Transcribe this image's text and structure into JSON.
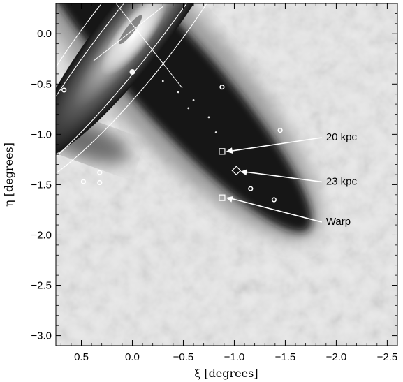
{
  "chart_data": {
    "type": "scatter",
    "title": "",
    "xlabel": "ξ [degrees]",
    "ylabel": "η [degrees]",
    "xlim": [
      0.75,
      -2.6
    ],
    "ylim": [
      -3.1,
      0.3
    ],
    "xticks": [
      0.5,
      0.0,
      -0.5,
      -1.0,
      -1.5,
      -2.0,
      -2.5
    ],
    "xtick_labels": [
      "0.5",
      "0.0",
      "−0.5",
      "−1.0",
      "−1.5",
      "−2.0",
      "−2.5"
    ],
    "yticks": [
      0.0,
      -0.5,
      -1.0,
      -1.5,
      -2.0,
      -2.5,
      -3.0
    ],
    "ytick_labels": [
      "0.0",
      "−0.5",
      "−1.0",
      "−1.5",
      "−2.0",
      "−2.5",
      "−3.0"
    ],
    "grid": false,
    "background": "grayscale stellar density map with galaxy image",
    "ellipses": [
      {
        "center": [
          0.0,
          0.0
        ],
        "semi_major_deg": 1.95,
        "semi_minor_deg": 0.42,
        "position_angle_deg": 38
      },
      {
        "center": [
          0.0,
          0.0
        ],
        "semi_major_deg": 1.8,
        "semi_minor_deg": 0.25,
        "position_angle_deg": 38
      }
    ],
    "cross_lines": [
      {
        "from": [
          0.16,
          0.3
        ],
        "to": [
          -0.49,
          -0.54
        ]
      },
      {
        "from": [
          0.38,
          -0.27
        ],
        "to": [
          -0.3,
          0.27
        ]
      }
    ],
    "circles": [
      {
        "xi": 0.67,
        "eta": -0.56
      },
      {
        "xi": 0.48,
        "eta": -1.47
      },
      {
        "xi": 0.32,
        "eta": -1.38
      },
      {
        "xi": 0.32,
        "eta": -1.48
      },
      {
        "xi": -0.88,
        "eta": -0.53
      },
      {
        "xi": -1.16,
        "eta": -1.54
      },
      {
        "xi": -1.39,
        "eta": -1.65
      },
      {
        "xi": -1.45,
        "eta": -0.96
      }
    ],
    "squares": [
      {
        "name": "20 kpc",
        "xi": -0.88,
        "eta": -1.17
      },
      {
        "name": "Warp",
        "xi": -0.88,
        "eta": -1.63
      }
    ],
    "diamonds": [
      {
        "name": "23 kpc",
        "xi": -1.02,
        "eta": -1.36
      }
    ],
    "annotations": [
      {
        "text": "20 kpc",
        "arrow_to": [
          -0.92,
          -1.17
        ],
        "label_at": [
          -1.9,
          -1.06
        ]
      },
      {
        "text": "23 kpc",
        "arrow_to": [
          -1.06,
          -1.37
        ],
        "label_at": [
          -1.9,
          -1.5
        ]
      },
      {
        "text": "Warp",
        "arrow_to": [
          -0.92,
          -1.63
        ],
        "label_at": [
          -1.9,
          -1.9
        ]
      }
    ],
    "colors": {
      "frame": "#000000",
      "overlay": "#ffffff",
      "halo_dark": "#141414",
      "field_light": "#e9e9e9"
    }
  }
}
